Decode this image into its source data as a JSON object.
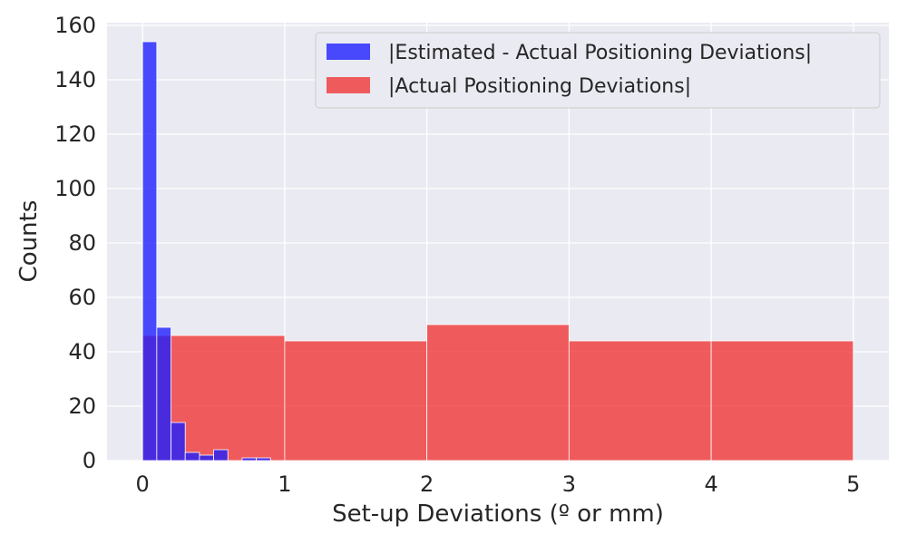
{
  "chart_data": {
    "type": "bar",
    "xlabel": "Set-up Deviations (º or mm)",
    "ylabel": "Counts",
    "xlim": [
      -0.25,
      5.25
    ],
    "ylim": [
      0,
      161
    ],
    "xticks": [
      "0",
      "1",
      "2",
      "3",
      "4",
      "5"
    ],
    "yticks": [
      "0",
      "20",
      "40",
      "60",
      "80",
      "100",
      "120",
      "140",
      "160"
    ],
    "grid": true,
    "legend_position": "top-right",
    "series": [
      {
        "name": "|Actual Positioning Deviations|",
        "color": "#f03232",
        "opacity": 0.78,
        "bins": [
          {
            "x0": 0,
            "x1": 1,
            "y": 46
          },
          {
            "x0": 1,
            "x1": 2,
            "y": 44
          },
          {
            "x0": 2,
            "x1": 3,
            "y": 50
          },
          {
            "x0": 3,
            "x1": 4,
            "y": 44
          },
          {
            "x0": 4,
            "x1": 5,
            "y": 44
          }
        ]
      },
      {
        "name": "|Estimated - Actual Positioning Deviations|",
        "color": "#1f1fff",
        "opacity": 0.8,
        "bins": [
          {
            "x0": 0.0,
            "x1": 0.1,
            "y": 154
          },
          {
            "x0": 0.1,
            "x1": 0.2,
            "y": 49
          },
          {
            "x0": 0.2,
            "x1": 0.3,
            "y": 14
          },
          {
            "x0": 0.3,
            "x1": 0.4,
            "y": 3
          },
          {
            "x0": 0.4,
            "x1": 0.5,
            "y": 2
          },
          {
            "x0": 0.5,
            "x1": 0.6,
            "y": 4
          },
          {
            "x0": 0.6,
            "x1": 0.7,
            "y": 0
          },
          {
            "x0": 0.7,
            "x1": 0.8,
            "y": 1
          },
          {
            "x0": 0.8,
            "x1": 0.9,
            "y": 1
          }
        ]
      }
    ]
  }
}
